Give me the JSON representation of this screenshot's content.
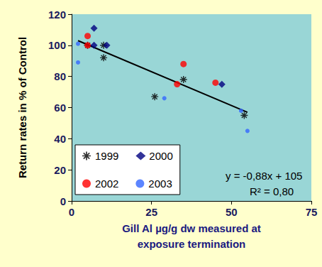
{
  "chart_data": {
    "type": "scatter",
    "x_label": "Gill Al µg/g dw measured at\nexposure termination",
    "y_label": "Return rates in % of Control",
    "xlim": [
      0,
      75
    ],
    "xticks": [
      0,
      25,
      50,
      75
    ],
    "ylim": [
      0,
      120
    ],
    "yticks": [
      0,
      20,
      40,
      60,
      80,
      100,
      120
    ],
    "grid": false,
    "legend": "bottom-left",
    "series": [
      {
        "name": "1999",
        "color": "#000000",
        "marker": "asterisk",
        "x": [
          5,
          10,
          10,
          26,
          35,
          54
        ],
        "values": [
          100,
          92,
          100,
          67,
          78,
          55
        ]
      },
      {
        "name": "2000",
        "color": "#000080",
        "marker": "diamond",
        "x": [
          7,
          7,
          11,
          47
        ],
        "values": [
          111,
          100,
          100,
          75
        ]
      },
      {
        "name": "2002",
        "color": "#ff0000",
        "marker": "circle",
        "x": [
          5,
          5,
          33,
          35,
          45
        ],
        "values": [
          106,
          100,
          75,
          88,
          76
        ]
      },
      {
        "name": "2003",
        "color": "#3366ff",
        "marker": "circle",
        "x": [
          2,
          2,
          29,
          53,
          55
        ],
        "values": [
          101,
          89,
          66,
          58,
          45
        ]
      }
    ],
    "trendline": {
      "color": "#000000",
      "line_style": "solid",
      "x": [
        2,
        55
      ],
      "values": [
        103,
        57
      ]
    },
    "annotations": [
      "y = -0,88x + 105",
      "R² = 0,80"
    ]
  }
}
